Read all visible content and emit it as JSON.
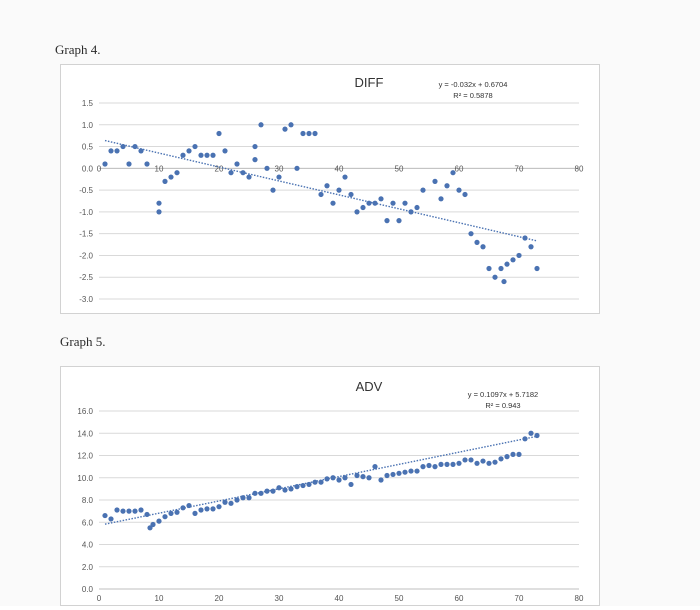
{
  "page": {
    "graph4_label": "Graph 4.",
    "graph5_label": "Graph 5."
  },
  "chart_data": [
    {
      "type": "scatter",
      "title": "DIFF",
      "trendline": {
        "equation": "y = -0.032x + 0.6704",
        "r2": "R² = 0.5878",
        "slope": -0.032,
        "intercept": 0.6704,
        "x_range": [
          1,
          73
        ]
      },
      "xlim": [
        0,
        80
      ],
      "ylim": [
        -3.0,
        1.5
      ],
      "x_ticks": [
        "0",
        "10",
        "20",
        "30",
        "40",
        "50",
        "60",
        "70",
        "80"
      ],
      "y_ticks": [
        "1.5",
        "1.0",
        "0.5",
        "0.0",
        "-0.5",
        "-1.0",
        "-1.5",
        "-2.0",
        "-2.5",
        "-3.0"
      ],
      "grid": true,
      "marker_color": "#4a72b2",
      "points": [
        [
          1,
          0.1
        ],
        [
          2,
          0.4
        ],
        [
          3,
          0.4
        ],
        [
          4,
          0.5
        ],
        [
          5,
          0.1
        ],
        [
          6,
          0.5
        ],
        [
          7,
          0.4
        ],
        [
          8,
          0.1
        ],
        [
          10,
          -0.8
        ],
        [
          10,
          -1.0
        ],
        [
          11,
          -0.3
        ],
        [
          12,
          -0.2
        ],
        [
          13,
          -0.1
        ],
        [
          14,
          0.3
        ],
        [
          15,
          0.4
        ],
        [
          16,
          0.5
        ],
        [
          17,
          0.3
        ],
        [
          18,
          0.3
        ],
        [
          19,
          0.3
        ],
        [
          20,
          0.8
        ],
        [
          21,
          0.4
        ],
        [
          22,
          -0.1
        ],
        [
          23,
          0.1
        ],
        [
          24,
          -0.1
        ],
        [
          25,
          -0.2
        ],
        [
          26,
          0.2
        ],
        [
          26,
          0.5
        ],
        [
          27,
          1.0
        ],
        [
          28,
          0.0
        ],
        [
          29,
          -0.5
        ],
        [
          30,
          -0.2
        ],
        [
          31,
          0.9
        ],
        [
          32,
          1.0
        ],
        [
          33,
          0.0
        ],
        [
          34,
          0.8
        ],
        [
          35,
          0.8
        ],
        [
          36,
          0.8
        ],
        [
          37,
          -0.6
        ],
        [
          38,
          -0.4
        ],
        [
          39,
          -0.8
        ],
        [
          40,
          -0.5
        ],
        [
          41,
          -0.2
        ],
        [
          42,
          -0.6
        ],
        [
          43,
          -1.0
        ],
        [
          44,
          -0.9
        ],
        [
          45,
          -0.8
        ],
        [
          46,
          -0.8
        ],
        [
          47,
          -0.7
        ],
        [
          48,
          -1.2
        ],
        [
          49,
          -0.8
        ],
        [
          50,
          -1.2
        ],
        [
          51,
          -0.8
        ],
        [
          52,
          -1.0
        ],
        [
          53,
          -0.9
        ],
        [
          54,
          -0.5
        ],
        [
          56,
          -0.3
        ],
        [
          57,
          -0.7
        ],
        [
          58,
          -0.4
        ],
        [
          59,
          -0.1
        ],
        [
          60,
          -0.5
        ],
        [
          61,
          -0.6
        ],
        [
          62,
          -1.5
        ],
        [
          63,
          -1.7
        ],
        [
          64,
          -1.8
        ],
        [
          65,
          -2.3
        ],
        [
          66,
          -2.5
        ],
        [
          67,
          -2.3
        ],
        [
          67.5,
          -2.6
        ],
        [
          68,
          -2.2
        ],
        [
          69,
          -2.1
        ],
        [
          70,
          -2.0
        ],
        [
          71,
          -1.6
        ],
        [
          72,
          -1.8
        ],
        [
          73,
          -2.3
        ]
      ]
    },
    {
      "type": "scatter",
      "title": "ADV",
      "trendline": {
        "equation": "y = 0.1097x + 5.7182",
        "r2": "R² = 0.943",
        "slope": 0.1097,
        "intercept": 5.7182,
        "x_range": [
          1,
          73
        ]
      },
      "xlim": [
        0,
        80
      ],
      "ylim": [
        0.0,
        16.0
      ],
      "x_ticks": [
        "0",
        "10",
        "20",
        "30",
        "40",
        "50",
        "60",
        "70",
        "80"
      ],
      "y_ticks": [
        "16.0",
        "14.0",
        "12.0",
        "10.0",
        "8.0",
        "6.0",
        "4.0",
        "2.0",
        "0.0"
      ],
      "grid": true,
      "marker_color": "#4a72b2",
      "points": [
        [
          1,
          6.6
        ],
        [
          2,
          6.3
        ],
        [
          3,
          7.1
        ],
        [
          4,
          7.0
        ],
        [
          5,
          7.0
        ],
        [
          6,
          7.0
        ],
        [
          7,
          7.1
        ],
        [
          8,
          6.7
        ],
        [
          8.5,
          5.5
        ],
        [
          9,
          5.8
        ],
        [
          10,
          6.1
        ],
        [
          11,
          6.5
        ],
        [
          12,
          6.8
        ],
        [
          13,
          6.9
        ],
        [
          14,
          7.3
        ],
        [
          15,
          7.5
        ],
        [
          16,
          6.8
        ],
        [
          17,
          7.1
        ],
        [
          18,
          7.2
        ],
        [
          19,
          7.2
        ],
        [
          20,
          7.4
        ],
        [
          21,
          7.8
        ],
        [
          22,
          7.7
        ],
        [
          23,
          8.0
        ],
        [
          24,
          8.2
        ],
        [
          25,
          8.2
        ],
        [
          26,
          8.6
        ],
        [
          27,
          8.6
        ],
        [
          28,
          8.8
        ],
        [
          29,
          8.8
        ],
        [
          30,
          9.1
        ],
        [
          31,
          8.9
        ],
        [
          32,
          9.0
        ],
        [
          33,
          9.2
        ],
        [
          34,
          9.3
        ],
        [
          35,
          9.4
        ],
        [
          36,
          9.6
        ],
        [
          37,
          9.6
        ],
        [
          38,
          9.9
        ],
        [
          39,
          10.0
        ],
        [
          40,
          9.8
        ],
        [
          41,
          10.0
        ],
        [
          42,
          9.4
        ],
        [
          43,
          10.2
        ],
        [
          44,
          10.1
        ],
        [
          45,
          10.0
        ],
        [
          46,
          11.0
        ],
        [
          47,
          9.8
        ],
        [
          48,
          10.2
        ],
        [
          49,
          10.3
        ],
        [
          50,
          10.4
        ],
        [
          51,
          10.5
        ],
        [
          52,
          10.6
        ],
        [
          53,
          10.6
        ],
        [
          54,
          11.0
        ],
        [
          55,
          11.1
        ],
        [
          56,
          11.0
        ],
        [
          57,
          11.2
        ],
        [
          58,
          11.2
        ],
        [
          59,
          11.2
        ],
        [
          60,
          11.3
        ],
        [
          61,
          11.6
        ],
        [
          62,
          11.6
        ],
        [
          63,
          11.3
        ],
        [
          64,
          11.5
        ],
        [
          65,
          11.3
        ],
        [
          66,
          11.4
        ],
        [
          67,
          11.7
        ],
        [
          68,
          11.9
        ],
        [
          69,
          12.1
        ],
        [
          70,
          12.1
        ],
        [
          71,
          13.5
        ],
        [
          72,
          14.0
        ],
        [
          73,
          13.8
        ]
      ]
    }
  ]
}
